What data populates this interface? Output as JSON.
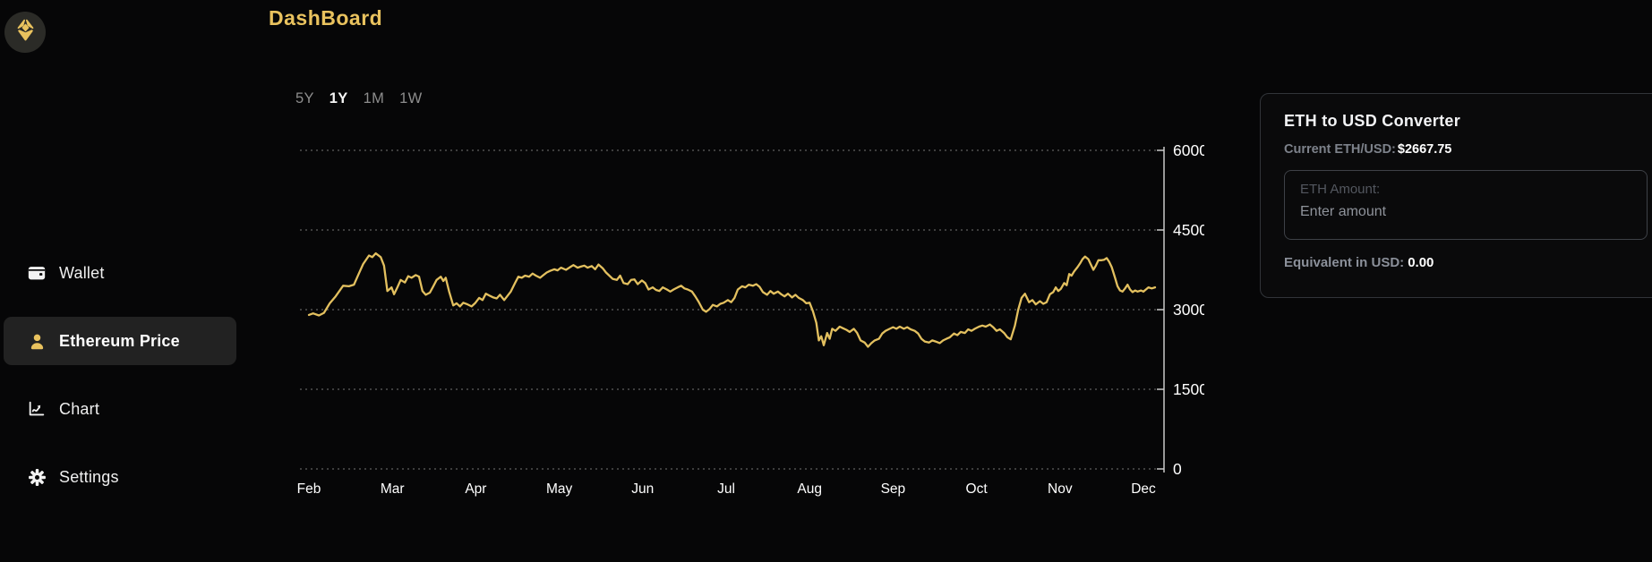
{
  "app": {
    "title": "DashBoard",
    "logo_icon": "ethereum-icon"
  },
  "sidebar": {
    "items": [
      {
        "label": "Wallet",
        "icon": "wallet-icon",
        "active": false
      },
      {
        "label": "Ethereum Price",
        "icon": "user-icon",
        "active": true
      },
      {
        "label": "Chart",
        "icon": "chart-line-icon",
        "active": false
      },
      {
        "label": "Settings",
        "icon": "gear-icon",
        "active": false
      }
    ]
  },
  "chart": {
    "ranges": [
      {
        "label": "5Y",
        "active": false
      },
      {
        "label": "1Y",
        "active": true
      },
      {
        "label": "1M",
        "active": false
      },
      {
        "label": "1W",
        "active": false
      }
    ]
  },
  "chart_data": {
    "type": "line",
    "categories": [
      "Feb",
      "Mar",
      "Apr",
      "May",
      "Jun",
      "Jul",
      "Aug",
      "Sep",
      "Oct",
      "Nov",
      "Dec"
    ],
    "y_ticks": [
      0,
      1500,
      3000,
      4500,
      6000
    ],
    "ylim": [
      0,
      6000
    ],
    "grid": "horizontal-dotted",
    "legend": "none",
    "line_color": "#e3c05f",
    "axis_color": "#c9c9c9",
    "series": [
      {
        "name": "ETH/USD",
        "x_unit": "months-from-Feb",
        "points": [
          [
            0,
            2900
          ],
          [
            0.05,
            2930
          ],
          [
            0.12,
            2890
          ],
          [
            0.18,
            2940
          ],
          [
            0.25,
            3120
          ],
          [
            0.32,
            3250
          ],
          [
            0.41,
            3450
          ],
          [
            0.48,
            3440
          ],
          [
            0.54,
            3470
          ],
          [
            0.59,
            3650
          ],
          [
            0.65,
            3860
          ],
          [
            0.72,
            4020
          ],
          [
            0.76,
            3990
          ],
          [
            0.8,
            4060
          ],
          [
            0.86,
            3990
          ],
          [
            0.9,
            3830
          ],
          [
            0.94,
            3350
          ],
          [
            0.99,
            3420
          ],
          [
            1.02,
            3290
          ],
          [
            1.06,
            3420
          ],
          [
            1.1,
            3560
          ],
          [
            1.15,
            3510
          ],
          [
            1.19,
            3630
          ],
          [
            1.23,
            3600
          ],
          [
            1.28,
            3650
          ],
          [
            1.32,
            3620
          ],
          [
            1.36,
            3350
          ],
          [
            1.4,
            3280
          ],
          [
            1.45,
            3320
          ],
          [
            1.49,
            3440
          ],
          [
            1.53,
            3560
          ],
          [
            1.58,
            3620
          ],
          [
            1.61,
            3540
          ],
          [
            1.64,
            3600
          ],
          [
            1.68,
            3340
          ],
          [
            1.73,
            3080
          ],
          [
            1.77,
            3120
          ],
          [
            1.81,
            3060
          ],
          [
            1.85,
            3130
          ],
          [
            1.9,
            3100
          ],
          [
            1.95,
            3060
          ],
          [
            1.99,
            3120
          ],
          [
            2.04,
            3220
          ],
          [
            2.08,
            3180
          ],
          [
            2.12,
            3300
          ],
          [
            2.17,
            3260
          ],
          [
            2.21,
            3230
          ],
          [
            2.25,
            3210
          ],
          [
            2.29,
            3280
          ],
          [
            2.34,
            3180
          ],
          [
            2.38,
            3260
          ],
          [
            2.42,
            3340
          ],
          [
            2.47,
            3500
          ],
          [
            2.51,
            3620
          ],
          [
            2.55,
            3600
          ],
          [
            2.59,
            3640
          ],
          [
            2.64,
            3620
          ],
          [
            2.68,
            3680
          ],
          [
            2.72,
            3640
          ],
          [
            2.77,
            3600
          ],
          [
            2.81,
            3650
          ],
          [
            2.85,
            3700
          ],
          [
            2.89,
            3730
          ],
          [
            2.94,
            3760
          ],
          [
            2.98,
            3740
          ],
          [
            3.02,
            3790
          ],
          [
            3.08,
            3750
          ],
          [
            3.13,
            3800
          ],
          [
            3.17,
            3840
          ],
          [
            3.22,
            3790
          ],
          [
            3.26,
            3810
          ],
          [
            3.3,
            3830
          ],
          [
            3.34,
            3790
          ],
          [
            3.39,
            3820
          ],
          [
            3.43,
            3760
          ],
          [
            3.47,
            3850
          ],
          [
            3.52,
            3780
          ],
          [
            3.56,
            3700
          ],
          [
            3.6,
            3640
          ],
          [
            3.64,
            3580
          ],
          [
            3.69,
            3560
          ],
          [
            3.73,
            3640
          ],
          [
            3.77,
            3500
          ],
          [
            3.82,
            3480
          ],
          [
            3.86,
            3560
          ],
          [
            3.9,
            3570
          ],
          [
            3.94,
            3480
          ],
          [
            3.99,
            3550
          ],
          [
            4.03,
            3500
          ],
          [
            4.07,
            3380
          ],
          [
            4.12,
            3420
          ],
          [
            4.16,
            3370
          ],
          [
            4.2,
            3350
          ],
          [
            4.24,
            3420
          ],
          [
            4.29,
            3380
          ],
          [
            4.33,
            3340
          ],
          [
            4.37,
            3380
          ],
          [
            4.42,
            3420
          ],
          [
            4.46,
            3450
          ],
          [
            4.5,
            3400
          ],
          [
            4.54,
            3380
          ],
          [
            4.59,
            3340
          ],
          [
            4.63,
            3250
          ],
          [
            4.67,
            3150
          ],
          [
            4.72,
            3000
          ],
          [
            4.76,
            2960
          ],
          [
            4.8,
            3010
          ],
          [
            4.84,
            3090
          ],
          [
            4.89,
            3060
          ],
          [
            4.93,
            3110
          ],
          [
            4.97,
            3130
          ],
          [
            5.02,
            3180
          ],
          [
            5.06,
            3140
          ],
          [
            5.1,
            3220
          ],
          [
            5.14,
            3380
          ],
          [
            5.19,
            3440
          ],
          [
            5.23,
            3420
          ],
          [
            5.27,
            3470
          ],
          [
            5.32,
            3450
          ],
          [
            5.36,
            3480
          ],
          [
            5.4,
            3430
          ],
          [
            5.44,
            3330
          ],
          [
            5.49,
            3280
          ],
          [
            5.53,
            3350
          ],
          [
            5.57,
            3300
          ],
          [
            5.62,
            3340
          ],
          [
            5.66,
            3290
          ],
          [
            5.7,
            3250
          ],
          [
            5.74,
            3300
          ],
          [
            5.79,
            3230
          ],
          [
            5.83,
            3280
          ],
          [
            5.87,
            3220
          ],
          [
            5.92,
            3180
          ],
          [
            5.96,
            3120
          ],
          [
            6,
            3130
          ],
          [
            6.04,
            2970
          ],
          [
            6.08,
            2750
          ],
          [
            6.11,
            2420
          ],
          [
            6.14,
            2500
          ],
          [
            6.17,
            2330
          ],
          [
            6.21,
            2560
          ],
          [
            6.24,
            2450
          ],
          [
            6.27,
            2640
          ],
          [
            6.31,
            2600
          ],
          [
            6.36,
            2680
          ],
          [
            6.4,
            2650
          ],
          [
            6.44,
            2620
          ],
          [
            6.48,
            2580
          ],
          [
            6.53,
            2640
          ],
          [
            6.57,
            2560
          ],
          [
            6.61,
            2420
          ],
          [
            6.66,
            2380
          ],
          [
            6.7,
            2300
          ],
          [
            6.74,
            2370
          ],
          [
            6.78,
            2420
          ],
          [
            6.83,
            2450
          ],
          [
            6.87,
            2550
          ],
          [
            6.91,
            2600
          ],
          [
            6.96,
            2640
          ],
          [
            7,
            2670
          ],
          [
            7.04,
            2640
          ],
          [
            7.08,
            2680
          ],
          [
            7.13,
            2640
          ],
          [
            7.17,
            2670
          ],
          [
            7.21,
            2630
          ],
          [
            7.26,
            2600
          ],
          [
            7.3,
            2550
          ],
          [
            7.34,
            2450
          ],
          [
            7.38,
            2400
          ],
          [
            7.43,
            2380
          ],
          [
            7.47,
            2420
          ],
          [
            7.51,
            2400
          ],
          [
            7.56,
            2370
          ],
          [
            7.6,
            2420
          ],
          [
            7.64,
            2450
          ],
          [
            7.68,
            2480
          ],
          [
            7.73,
            2550
          ],
          [
            7.77,
            2520
          ],
          [
            7.81,
            2580
          ],
          [
            7.86,
            2560
          ],
          [
            7.9,
            2630
          ],
          [
            7.94,
            2600
          ],
          [
            7.98,
            2640
          ],
          [
            8.03,
            2680
          ],
          [
            8.07,
            2700
          ],
          [
            8.11,
            2680
          ],
          [
            8.16,
            2720
          ],
          [
            8.2,
            2670
          ],
          [
            8.24,
            2600
          ],
          [
            8.28,
            2630
          ],
          [
            8.33,
            2560
          ],
          [
            8.37,
            2480
          ],
          [
            8.41,
            2440
          ],
          [
            8.46,
            2700
          ],
          [
            8.5,
            3000
          ],
          [
            8.54,
            3220
          ],
          [
            8.58,
            3300
          ],
          [
            8.63,
            3140
          ],
          [
            8.67,
            3180
          ],
          [
            8.71,
            3100
          ],
          [
            8.76,
            3160
          ],
          [
            8.8,
            3110
          ],
          [
            8.84,
            3140
          ],
          [
            8.88,
            3290
          ],
          [
            8.92,
            3330
          ],
          [
            8.95,
            3420
          ],
          [
            8.98,
            3350
          ],
          [
            9.01,
            3390
          ],
          [
            9.05,
            3500
          ],
          [
            9.08,
            3460
          ],
          [
            9.11,
            3670
          ],
          [
            9.14,
            3640
          ],
          [
            9.17,
            3720
          ],
          [
            9.21,
            3800
          ],
          [
            9.24,
            3870
          ],
          [
            9.27,
            3950
          ],
          [
            9.3,
            4000
          ],
          [
            9.34,
            3950
          ],
          [
            9.37,
            3850
          ],
          [
            9.4,
            3750
          ],
          [
            9.43,
            3830
          ],
          [
            9.46,
            3930
          ],
          [
            9.5,
            3930
          ],
          [
            9.53,
            3940
          ],
          [
            9.56,
            3970
          ],
          [
            9.59,
            3900
          ],
          [
            9.62,
            3800
          ],
          [
            9.66,
            3600
          ],
          [
            9.69,
            3440
          ],
          [
            9.72,
            3360
          ],
          [
            9.75,
            3340
          ],
          [
            9.78,
            3400
          ],
          [
            9.81,
            3470
          ],
          [
            9.84,
            3380
          ],
          [
            9.87,
            3330
          ],
          [
            9.9,
            3360
          ],
          [
            9.93,
            3340
          ],
          [
            9.97,
            3360
          ],
          [
            10,
            3340
          ],
          [
            10.03,
            3380
          ],
          [
            10.06,
            3420
          ],
          [
            10.1,
            3400
          ],
          [
            10.14,
            3420
          ]
        ]
      }
    ]
  },
  "converter": {
    "title": "ETH to USD Converter",
    "current_label": "Current ETH/USD:",
    "current_value": "$2667.75",
    "input_label": "ETH Amount:",
    "input_placeholder": "Enter amount",
    "equivalent_label": "Equivalent in USD:",
    "equivalent_value": "0.00"
  },
  "colors": {
    "background": "#060607",
    "accent_gold": "#e9c25e",
    "line_gold": "#e3c05f",
    "active_row_bg": "#222222",
    "muted_text": "#8d8d8d"
  }
}
